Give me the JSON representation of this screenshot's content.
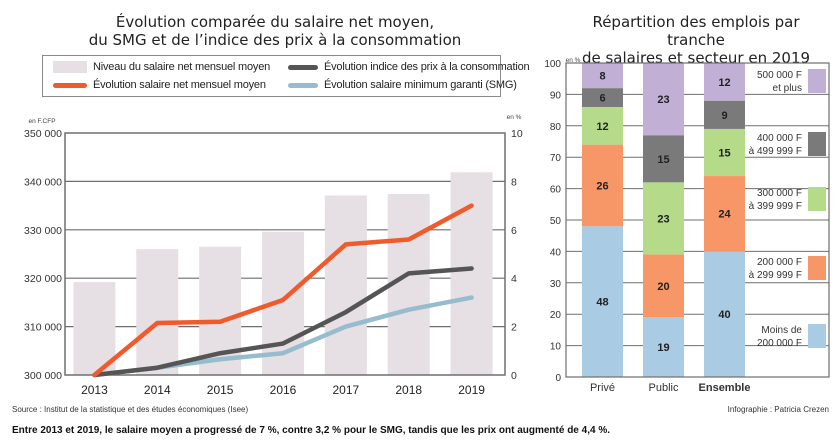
{
  "chart_data": [
    {
      "type": "bar+line",
      "title_line1": "Évolution comparée du salaire net moyen,",
      "title_line2": "du SMG et de l’indice des prix à la consommation",
      "legend": {
        "placement": "top",
        "items": [
          {
            "name": "Niveau du salaire net mensuel moyen",
            "kind": "bar",
            "color": "#e6dfe3"
          },
          {
            "name": "Évolution indice des prix à la consommation",
            "kind": "line",
            "color": "#555555"
          },
          {
            "name": "Évolution salaire net mensuel moyen",
            "kind": "line",
            "color": "#f05a2c"
          },
          {
            "name": "Évolution salaire minimum garanti (SMG)",
            "kind": "line",
            "color": "#97bccd"
          }
        ]
      },
      "categories": [
        "2013",
        "2014",
        "2015",
        "2016",
        "2017",
        "2018",
        "2019"
      ],
      "left_axis": {
        "unit": "en F.CFP",
        "range": [
          300000,
          350000
        ],
        "ticks": [
          300000,
          310000,
          320000,
          330000,
          340000,
          350000
        ],
        "tick_labels": [
          "300 000",
          "310 000",
          "320 000",
          "330 000",
          "340 000",
          "350 000"
        ]
      },
      "right_axis": {
        "unit": "en %",
        "range": [
          0,
          10
        ],
        "ticks": [
          0,
          2,
          4,
          6,
          8,
          10
        ],
        "tick_labels": [
          "0",
          "2",
          "4",
          "6",
          "8",
          "10"
        ]
      },
      "grid": true,
      "bars": {
        "name": "Niveau du salaire net mensuel moyen",
        "axis": "left",
        "values": [
          319200,
          326000,
          326500,
          329600,
          337100,
          337400,
          341900
        ]
      },
      "series": [
        {
          "name": "Évolution salaire net mensuel moyen",
          "axis": "right",
          "color": "#f05a2c",
          "values": [
            0,
            2.15,
            2.2,
            3.1,
            5.4,
            5.6,
            7.0
          ]
        },
        {
          "name": "Évolution indice des prix à la consommation",
          "axis": "right",
          "color": "#555555",
          "values": [
            0,
            0.3,
            0.9,
            1.3,
            2.6,
            4.2,
            4.4
          ]
        },
        {
          "name": "Évolution salaire minimum garanti (SMG)",
          "axis": "right",
          "color": "#97bccd",
          "values": [
            0,
            0.3,
            0.65,
            0.9,
            2.0,
            2.7,
            3.2
          ]
        }
      ]
    },
    {
      "type": "stacked-bar",
      "title_line1": "Répartition des emplois par tranche",
      "title_line2": "de salaires et secteur en 2019",
      "y_unit": "en %",
      "ylim": [
        0,
        100
      ],
      "ticks": [
        0,
        10,
        20,
        30,
        40,
        50,
        60,
        70,
        80,
        90,
        100
      ],
      "tick_labels": [
        "0",
        "10",
        "20",
        "30",
        "40",
        "50",
        "60",
        "70",
        "80",
        "90",
        "100"
      ],
      "grid": true,
      "legend_placement": "right",
      "categories": [
        "Privé",
        "Public",
        "Ensemble"
      ],
      "bold_categories": [
        false,
        false,
        true
      ],
      "series": [
        {
          "name": "Moins de 200 000 F",
          "label_line1": "Moins de",
          "label_line2": "200 000 F",
          "color": "#a9cbe3",
          "values": [
            48,
            19,
            40
          ]
        },
        {
          "name": "200 000 F à 299 999 F",
          "label_line1": "200 000 F",
          "label_line2": "à 299 999 F",
          "color": "#f79768",
          "values": [
            26,
            20,
            24
          ]
        },
        {
          "name": "300 000 F à 399 999 F",
          "label_line1": "300 000 F",
          "label_line2": "à 399 999 F",
          "color": "#b5da8a",
          "values": [
            12,
            23,
            15
          ]
        },
        {
          "name": "400 000 F à 499 999 F",
          "label_line1": "400 000 F",
          "label_line2": "à 499 999 F",
          "color": "#7a7a7a",
          "values": [
            6,
            15,
            9
          ]
        },
        {
          "name": "500 000 F et plus",
          "label_line1": "500 000 F",
          "label_line2": "et plus",
          "color": "#c2afd6",
          "values": [
            8,
            23,
            12
          ]
        }
      ]
    }
  ],
  "footer": {
    "source": "Source : Institut de la statistique et des études économiques (Isee)",
    "credit": "Infographie : Patricia Crezen",
    "caption": "Entre 2013 et 2019, le salaire moyen a progressé de 7 %, contre 3,2 % pour le SMG, tandis que les prix ont augmenté de 4,4 %."
  }
}
